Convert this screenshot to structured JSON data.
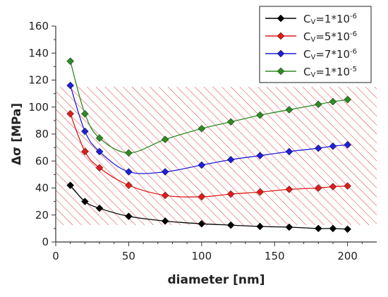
{
  "chart_data": {
    "type": "line",
    "title": "",
    "xlabel": "diameter [nm]",
    "ylabel": "Δσ [MPa]",
    "xlim": [
      0,
      220
    ],
    "ylim": [
      0,
      160
    ],
    "xticks": [
      0,
      50,
      100,
      150,
      200
    ],
    "yticks": [
      0,
      20,
      40,
      60,
      80,
      100,
      120,
      140,
      160
    ],
    "grid": false,
    "legend_position": "top-right",
    "marker": "diamond",
    "shaded_band": {
      "y_min": 12.5,
      "y_max": 115,
      "pattern": "diagonal-hatch",
      "color": "#d63a3a"
    },
    "series": [
      {
        "name": "Cv=1*10-6",
        "legend": {
          "base": "C",
          "sub": "V",
          "text": "=1*10",
          "sup": "-6"
        },
        "color": "#000000",
        "x": [
          10,
          20,
          30,
          50,
          75,
          100,
          120,
          140,
          160,
          180,
          190,
          200
        ],
        "values": [
          42,
          30,
          25,
          19,
          15.5,
          13.5,
          12.5,
          11.5,
          11,
          10,
          10,
          9.5
        ]
      },
      {
        "name": "Cv=5*10-6",
        "legend": {
          "base": "C",
          "sub": "V",
          "text": "=5*10",
          "sup": "-6"
        },
        "color": "#e01b1b",
        "x": [
          10,
          20,
          30,
          50,
          75,
          100,
          120,
          140,
          160,
          180,
          190,
          200
        ],
        "values": [
          95,
          67,
          55,
          42,
          34.5,
          33.5,
          35.5,
          37,
          39,
          40,
          41,
          41.5
        ]
      },
      {
        "name": "Cv=7*10-6",
        "legend": {
          "base": "C",
          "sub": "V",
          "text": "=7*10",
          "sup": "-6"
        },
        "color": "#1f1fd6",
        "x": [
          10,
          20,
          30,
          50,
          75,
          100,
          120,
          140,
          160,
          180,
          190,
          200
        ],
        "values": [
          116,
          82,
          67,
          52,
          52,
          57,
          61,
          64,
          67,
          69.5,
          71,
          72
        ]
      },
      {
        "name": "Cv=1*10-5",
        "legend": {
          "base": "C",
          "sub": "V",
          "text": "=1*10",
          "sup": "-5"
        },
        "color": "#2e8b22",
        "x": [
          10,
          20,
          30,
          50,
          75,
          100,
          120,
          140,
          160,
          180,
          190,
          200
        ],
        "values": [
          134,
          95,
          77,
          66,
          76,
          84,
          89,
          94,
          98,
          102,
          104,
          105.5
        ]
      }
    ]
  }
}
